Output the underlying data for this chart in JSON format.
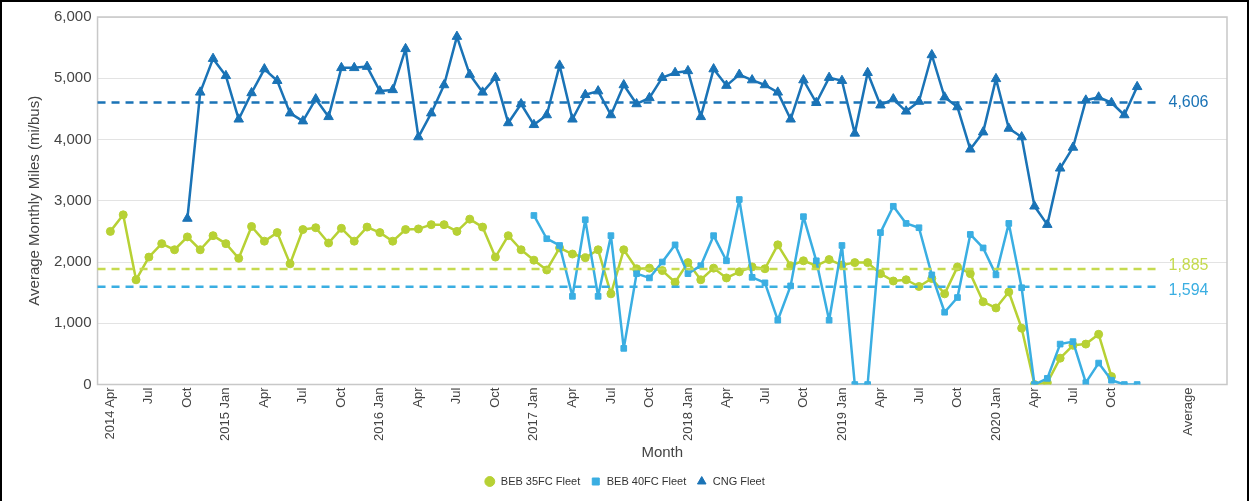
{
  "chart_data": {
    "type": "line",
    "xlabel": "Month",
    "ylabel": "Average Monthly Miles (mi/bus)",
    "categories": [
      null,
      "2014 Apr",
      null,
      null,
      "Jul",
      null,
      null,
      "Oct",
      null,
      null,
      "2015 Jan",
      null,
      null,
      "Apr",
      null,
      null,
      "Jul",
      null,
      null,
      "Oct",
      null,
      null,
      "2016 Jan",
      null,
      null,
      "Apr",
      null,
      null,
      "Jul",
      null,
      null,
      "Oct",
      null,
      null,
      "2017 Jan",
      null,
      null,
      "Apr",
      null,
      null,
      "Jul",
      null,
      null,
      "Oct",
      null,
      null,
      "2018 Jan",
      null,
      null,
      "Apr",
      null,
      null,
      "Jul",
      null,
      null,
      "Oct",
      null,
      null,
      "2019 Jan",
      null,
      null,
      "Apr",
      null,
      null,
      "Jul",
      null,
      null,
      "Oct",
      null,
      null,
      "2020 Jan",
      null,
      null,
      "Apr",
      null,
      null,
      "Jul",
      null,
      null,
      "Oct",
      null,
      null,
      null,
      null,
      null,
      "Average",
      null,
      null,
      null
    ],
    "series": [
      {
        "name": "BEB 35FC Fleet",
        "color": "#b7d134",
        "marker": "circle",
        "values": [
          null,
          2500,
          2770,
          1710,
          2080,
          2300,
          2200,
          2410,
          2200,
          2430,
          2300,
          2060,
          2580,
          2340,
          2480,
          1970,
          2530,
          2560,
          2310,
          2550,
          2340,
          2570,
          2480,
          2340,
          2530,
          2540,
          2610,
          2610,
          2500,
          2700,
          2570,
          2080,
          2430,
          2200,
          2030,
          1870,
          2230,
          2130,
          2070,
          2200,
          1480,
          2200,
          1890,
          1900,
          1860,
          1670,
          1990,
          1710,
          1900,
          1740,
          1840,
          1920,
          1890,
          2280,
          1940,
          2020,
          1940,
          2040,
          1950,
          1990,
          1990,
          1810,
          1690,
          1710,
          1600,
          1730,
          1480,
          1920,
          1810,
          1350,
          1250,
          1510,
          920,
          0,
          30,
          430,
          640,
          660,
          820,
          130,
          null,
          null,
          null,
          null,
          null,
          null,
          null,
          null,
          null
        ]
      },
      {
        "name": "BEB 40FC Fleet",
        "color": "#3aaee2",
        "marker": "square",
        "values": [
          null,
          null,
          null,
          null,
          null,
          null,
          null,
          null,
          null,
          null,
          null,
          null,
          null,
          null,
          null,
          null,
          null,
          null,
          null,
          null,
          null,
          null,
          null,
          null,
          null,
          null,
          null,
          null,
          null,
          null,
          null,
          null,
          null,
          null,
          2760,
          2380,
          2270,
          1440,
          2690,
          1440,
          2430,
          590,
          1810,
          1740,
          2000,
          2280,
          1810,
          1940,
          2430,
          2020,
          3020,
          1750,
          1660,
          1050,
          1610,
          2740,
          2020,
          1050,
          2270,
          0,
          0,
          2480,
          2910,
          2630,
          2560,
          1790,
          1180,
          1420,
          2450,
          2230,
          1790,
          2630,
          1580,
          0,
          100,
          660,
          700,
          30,
          350,
          70,
          0,
          0,
          null,
          null,
          null,
          null,
          null,
          null,
          null
        ]
      },
      {
        "name": "CNG Fleet",
        "color": "#1a73b6",
        "marker": "triangle",
        "values": [
          null,
          null,
          null,
          null,
          null,
          null,
          null,
          2710,
          4770,
          5320,
          5040,
          4330,
          4760,
          5150,
          4960,
          4430,
          4300,
          4660,
          4370,
          5170,
          5170,
          5190,
          4790,
          4810,
          5480,
          4040,
          4430,
          4890,
          5680,
          5060,
          4770,
          5010,
          4270,
          4580,
          4240,
          4400,
          5210,
          4330,
          4730,
          4790,
          4400,
          4890,
          4580,
          4680,
          5010,
          5090,
          5120,
          4370,
          5150,
          4880,
          5060,
          4970,
          4890,
          4770,
          4330,
          4970,
          4600,
          5010,
          4960,
          4100,
          5090,
          4560,
          4660,
          4460,
          4620,
          5380,
          4690,
          4530,
          3840,
          4120,
          4990,
          4180,
          4040,
          2910,
          2610,
          3530,
          3870,
          4640,
          4690,
          4600,
          4400,
          4860,
          null,
          null,
          null,
          null,
          null,
          null,
          null
        ]
      }
    ],
    "ylim": [
      0,
      6000
    ],
    "yticks": [
      0,
      {
        "value": 1000,
        "label": "1,000"
      },
      {
        "value": 2000,
        "label": "2,000"
      },
      {
        "value": 3000,
        "label": "3,000"
      },
      {
        "value": 4000,
        "label": "4,000"
      },
      {
        "value": 5000,
        "label": "5,000"
      },
      {
        "value": 6000,
        "label": "6,000"
      }
    ],
    "ref_lines": [
      {
        "axis": "y",
        "value": 4606,
        "label": "4,606",
        "color": "#1a73b6",
        "line_style": "dashed"
      },
      {
        "axis": "y",
        "value": 1885,
        "label": "1,885",
        "color": "#c5da4e",
        "line_style": "dashed"
      },
      {
        "axis": "y",
        "value": 1594,
        "label": "1,594",
        "color": "#3aaee2",
        "line_style": "dashed"
      }
    ],
    "grid": "y",
    "legend": "bottom"
  }
}
